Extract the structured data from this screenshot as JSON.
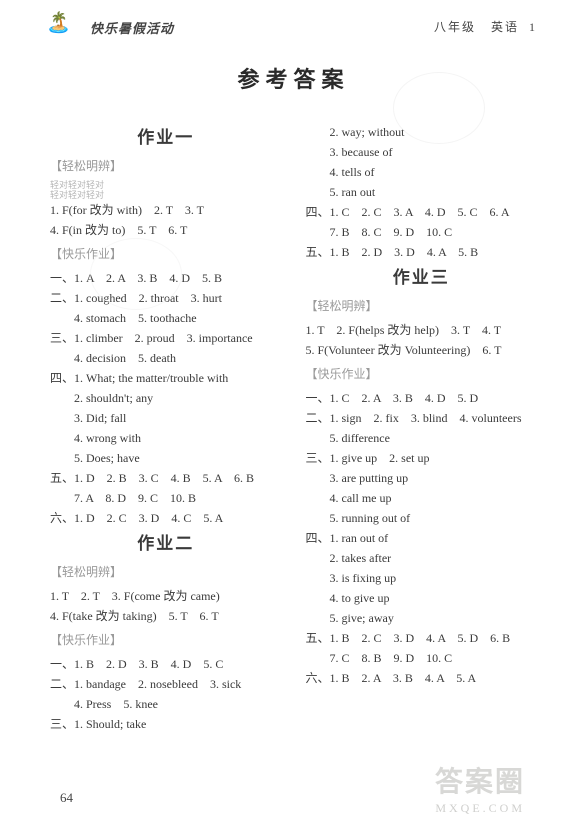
{
  "header": {
    "book_title": "快乐暑假活动",
    "grade": "八年级",
    "subject": "英语",
    "page_index": "1"
  },
  "main_title": "参考答案",
  "left": {
    "hw1_title": "作业一",
    "sub_qingsong": "【轻松明辨】",
    "tiny1": "轻对轻对轻对",
    "tiny2": "轻对轻对轻对",
    "q1": "1. F(for 改为 with)　2. T　3. T",
    "q2": "4. F(in 改为 to)　5. T　6. T",
    "sub_kuaile": "【快乐作业】",
    "a1": "一、1. A　2. A　3. B　4. D　5. B",
    "a2": "二、1. coughed　2. throat　3. hurt",
    "a2b": "　　4. stomach　5. toothache",
    "a3": "三、1. climber　2. proud　3. importance",
    "a3b": "　　4. decision　5. death",
    "a4": "四、1. What; the matter/trouble with",
    "a4b": "　　2. shouldn't; any",
    "a4c": "　　3. Did; fall",
    "a4d": "　　4. wrong with",
    "a4e": "　　5. Does; have",
    "a5": "五、1. D　2. B　3. C　4. B　5. A　6. B",
    "a5b": "　　7. A　8. D　9. C　10. B",
    "a6": "六、1. D　2. C　3. D　4. C　5. A",
    "hw2_title": "作业二",
    "sub_qingsong2": "【轻松明辨】",
    "b1": "1. T　2. T　3. F(come 改为 came)",
    "b2": "4. F(take 改为 taking)　5. T　6. T",
    "sub_kuaile2": "【快乐作业】",
    "c1": "一、1. B　2. D　3. B　4. D　5. C",
    "c2": "二、1. bandage　2. nosebleed　3. sick",
    "c2b": "　　4. Press　5. knee",
    "c3": "三、1. Should; take"
  },
  "right": {
    "r1": "　　2. way; without",
    "r2": "　　3. because of",
    "r3": "　　4. tells of",
    "r4": "　　5. ran out",
    "r5": "四、1. C　2. C　3. A　4. D　5. C　6. A",
    "r5b": "　　7. B　8. C　9. D　10. C",
    "r6": "五、1. B　2. D　3. D　4. A　5. B",
    "hw3_title": "作业三",
    "sub_qingsong3": "【轻松明辨】",
    "d1": "1. T　2. F(helps 改为 help)　3. T　4. T",
    "d2": "5. F(Volunteer 改为 Volunteering)　6. T",
    "sub_kuaile3": "【快乐作业】",
    "e1": "一、1. C　2. A　3. B　4. D　5. D",
    "e2": "二、1. sign　2. fix　3. blind　4. volunteers",
    "e2b": "　　5. difference",
    "e3": "三、1. give up　2. set up",
    "e3b": "　　3. are putting up",
    "e3c": "　　4. call me up",
    "e3d": "　　5. running out of",
    "e4": "四、1. ran out of",
    "e4b": "　　2. takes after",
    "e4c": "　　3. is fixing up",
    "e4d": "　　4. to give up",
    "e4e": "　　5. give; away",
    "e5": "五、1. B　2. C　3. D　4. A　5. D　6. B",
    "e5b": "　　7. C　8. B　9. D　10. C",
    "e6": "六、1. B　2. A　3. B　4. A　5. A"
  },
  "footer": {
    "page_number": "64",
    "watermark_main": "答案圈",
    "watermark_sub": "MXQE.COM"
  }
}
